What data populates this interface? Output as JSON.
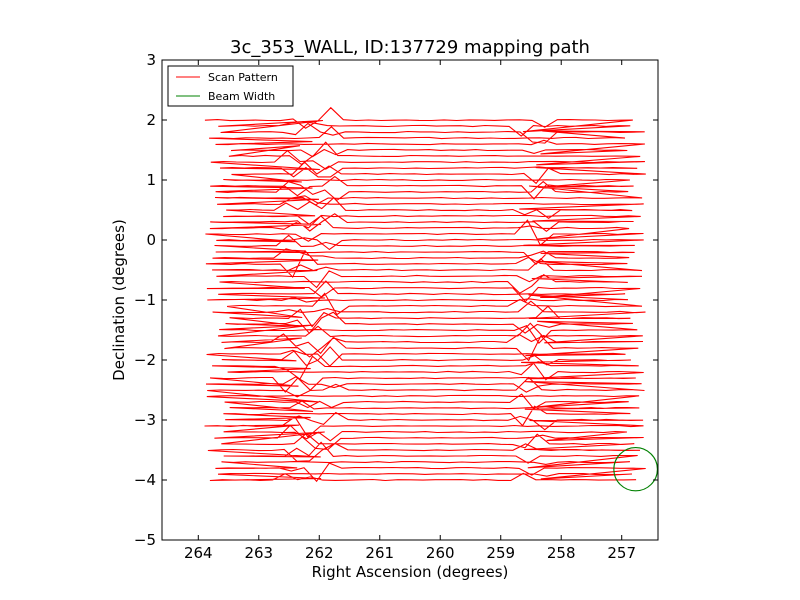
{
  "chart_data": {
    "type": "line",
    "title": "3c_353_WALL, ID:137729 mapping path",
    "xlabel": "Right Ascension (degrees)",
    "ylabel": "Declination (degrees)",
    "xlim": [
      264.6,
      256.4
    ],
    "ylim": [
      -5,
      3
    ],
    "xticks": [
      264,
      263,
      262,
      261,
      260,
      259,
      258,
      257
    ],
    "yticks": [
      3,
      2,
      1,
      0,
      -1,
      -2,
      -3,
      -4,
      -5
    ],
    "grid": false,
    "legend": {
      "location": "top-left",
      "entries": [
        {
          "label": "Scan Pattern",
          "color": "#ff0000"
        },
        {
          "label": "Beam Width",
          "color": "#008000"
        }
      ]
    },
    "series": [
      {
        "name": "Scan Pattern",
        "color": "#ff0000",
        "kind": "raster-scan",
        "dec_start": 2.0,
        "dec_end": -3.98,
        "dec_step": 0.1,
        "ra_min": 256.6,
        "ra_max": 263.9,
        "turnaround_bands_ra": [
          [
            261.7,
            262.6
          ],
          [
            258.2,
            258.7
          ]
        ]
      },
      {
        "name": "Beam Width",
        "color": "#008000",
        "kind": "circle",
        "center": [
          256.77,
          -3.82
        ],
        "radius_deg": 0.36
      }
    ]
  }
}
